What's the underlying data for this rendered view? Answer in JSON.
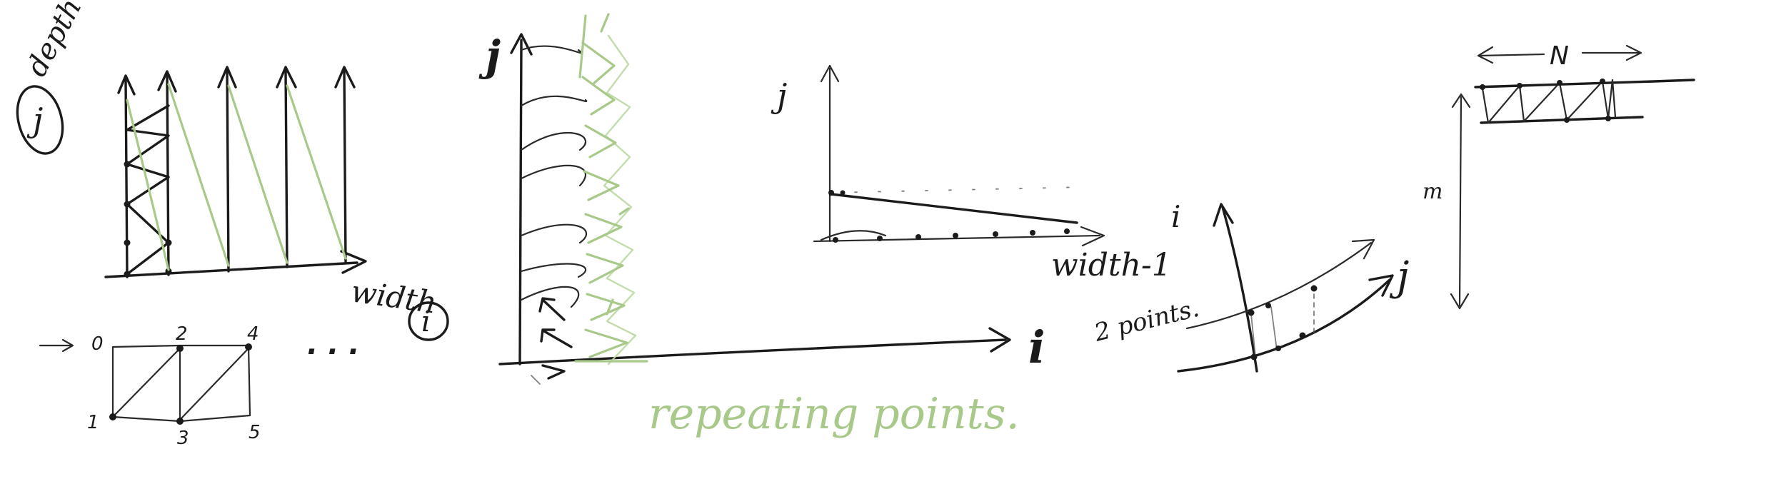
{
  "sketch1": {
    "label_depth": "depth",
    "label_j": "j",
    "label_width": "width",
    "label_i": "i"
  },
  "grid_numbers": {
    "n0": "0",
    "n1": "1",
    "n2": "2",
    "n3": "3",
    "n4": "4",
    "n5": "5",
    "ellipsis": ". . ."
  },
  "sketch2": {
    "label_j": "j",
    "label_i": "i",
    "annotation": "repeating   points."
  },
  "sketch3": {
    "label_j": "j",
    "label_width": "width-1"
  },
  "sketch4": {
    "label_i": "i",
    "label_j": "j",
    "annotation": "2 points."
  },
  "sketch5": {
    "label_n": "N",
    "label_m": "m"
  },
  "colors": {
    "ink": "#1b1b1b",
    "green": "#a8c98a"
  }
}
